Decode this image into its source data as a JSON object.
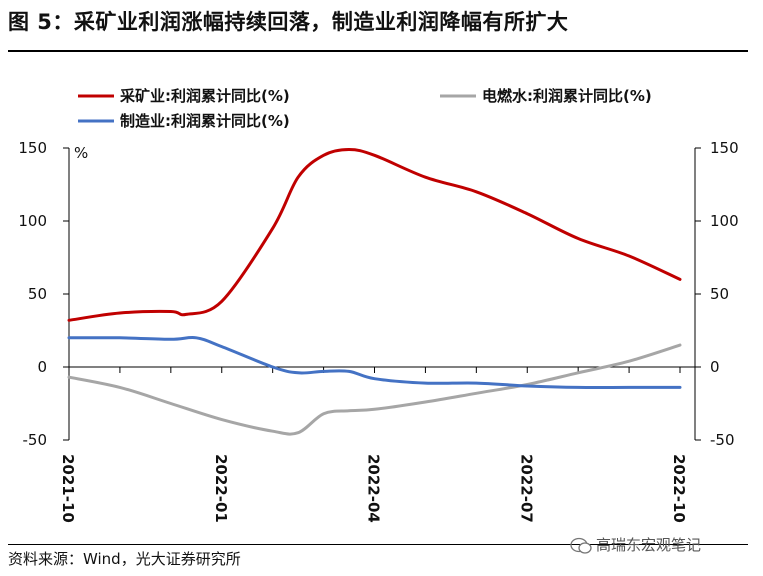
{
  "figure": {
    "title": "图 5：采矿业利润涨幅持续回落，制造业利润降幅有所扩大",
    "source": "资料来源：Wind，光大证券研究所",
    "watermark": "高瑞东宏观笔记"
  },
  "chart_data": {
    "type": "line",
    "ylabel_left": "%",
    "ylim": [
      -50,
      150
    ],
    "yticks": [
      -50,
      0,
      50,
      100,
      150
    ],
    "yticks_right": [
      -50,
      0,
      50,
      100,
      150
    ],
    "xtick_labels": [
      "2021-10",
      "2022-01",
      "2022-04",
      "2022-07",
      "2022-10"
    ],
    "xtick_positions": [
      0,
      3,
      6,
      9,
      12
    ],
    "grid": false,
    "legend": "top",
    "series": [
      {
        "name": "采矿业:利润累计同比(%)",
        "color": "#c00000",
        "x": [
          0,
          1,
          2,
          2.3,
          3,
          4,
          4.5,
          5,
          5.5,
          6,
          7,
          8,
          9,
          10,
          11,
          12
        ],
        "values": [
          32,
          37,
          38,
          36,
          45,
          95,
          130,
          145,
          149,
          145,
          130,
          120,
          105,
          88,
          76,
          60
        ]
      },
      {
        "name": "电燃水:利润累计同比(%)",
        "color": "#a6a6a6",
        "x": [
          0,
          1,
          2,
          3,
          4,
          4.5,
          5,
          5.5,
          6,
          7,
          8,
          9,
          10,
          11,
          12
        ],
        "values": [
          -7,
          -14,
          -25,
          -36,
          -44,
          -45,
          -32,
          -30,
          -29,
          -24,
          -18,
          -12,
          -4,
          4,
          15
        ]
      },
      {
        "name": "制造业:利润累计同比(%)",
        "color": "#4472c4",
        "x": [
          0,
          1,
          2,
          2.5,
          3,
          4,
          4.5,
          5,
          5.5,
          6,
          7,
          8,
          9,
          10,
          11,
          12
        ],
        "values": [
          20,
          20,
          19,
          20,
          14,
          0,
          -4,
          -3,
          -3,
          -8,
          -11,
          -11,
          -13,
          -14,
          -14,
          -14
        ]
      }
    ]
  }
}
